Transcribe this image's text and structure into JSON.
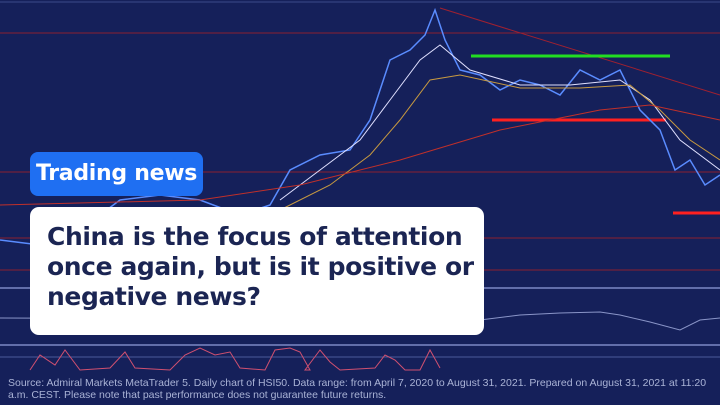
{
  "badge": {
    "label": "Trading news",
    "color": "#1f6ff2"
  },
  "headline": "China is the focus of attention once again, but is it positive or negative news?",
  "footer": {
    "source": "Source: Admiral Markets MetaTrader 5. Daily chart of HSI50. Data range: from April 7, 2020 to August 31, 2021. Prepared on August 31, 2021 at 11:20 a.m. CEST. Please note that past performance does not guarantee future returns."
  },
  "colors": {
    "background": "#15205a",
    "support_line": "#ff2020",
    "resistance_line": "#22dd22",
    "headline_text": "#1b2553"
  }
}
